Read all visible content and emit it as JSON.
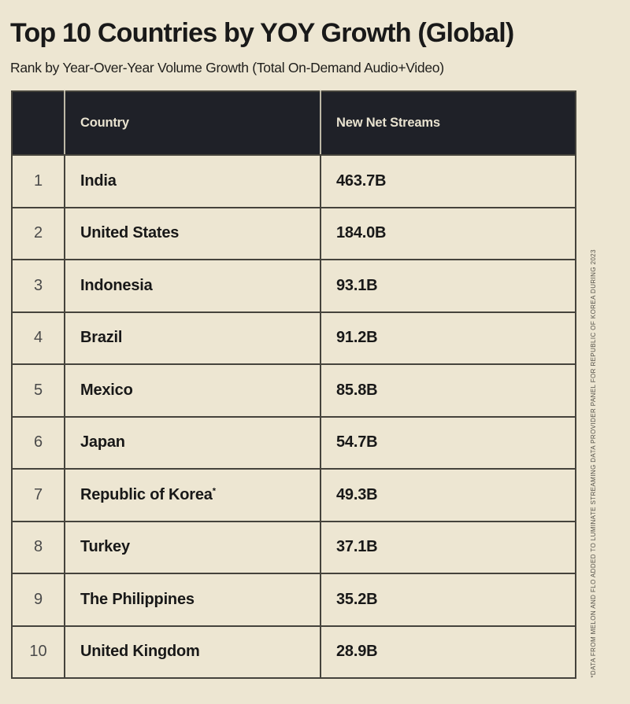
{
  "colors": {
    "background": "#ede6d2",
    "header_bg": "#1f2128",
    "header_text": "#e9e3d0",
    "header_divider": "#bdb8a6",
    "border": "#45433c",
    "text": "#181818",
    "rank_text": "#4a4a4a",
    "footnote_text": "#55524a"
  },
  "chart_data": {
    "type": "table",
    "title": "Top 10 Countries by YOY Growth (Global)",
    "subtitle": "Rank by Year-Over-Year Volume Growth (Total On-Demand Audio+Video)",
    "columns": [
      "",
      "Country",
      "New Net Streams"
    ],
    "rows": [
      {
        "rank": "1",
        "country": "India",
        "marker": "",
        "value": "463.7B",
        "value_numeric_billions": 463.7
      },
      {
        "rank": "2",
        "country": "United States",
        "marker": "",
        "value": "184.0B",
        "value_numeric_billions": 184.0
      },
      {
        "rank": "3",
        "country": "Indonesia",
        "marker": "",
        "value": "93.1B",
        "value_numeric_billions": 93.1
      },
      {
        "rank": "4",
        "country": "Brazil",
        "marker": "",
        "value": "91.2B",
        "value_numeric_billions": 91.2
      },
      {
        "rank": "5",
        "country": "Mexico",
        "marker": "",
        "value": "85.8B",
        "value_numeric_billions": 85.8
      },
      {
        "rank": "6",
        "country": "Japan",
        "marker": "",
        "value": "54.7B",
        "value_numeric_billions": 54.7
      },
      {
        "rank": "7",
        "country": "Republic of Korea",
        "marker": "*",
        "value": "49.3B",
        "value_numeric_billions": 49.3
      },
      {
        "rank": "8",
        "country": "Turkey",
        "marker": "",
        "value": "37.1B",
        "value_numeric_billions": 37.1
      },
      {
        "rank": "9",
        "country": "The Philippines",
        "marker": "",
        "value": "35.2B",
        "value_numeric_billions": 35.2
      },
      {
        "rank": "10",
        "country": "United Kingdom",
        "marker": "",
        "value": "28.9B",
        "value_numeric_billions": 28.9
      }
    ]
  },
  "footnote": {
    "text": "*DATA FROM MELON AND FLO ADDED TO LUMINATE STREAMING DATA PROVIDER PANEL FOR REPUBLIC OF KOREA DURING 2023"
  }
}
